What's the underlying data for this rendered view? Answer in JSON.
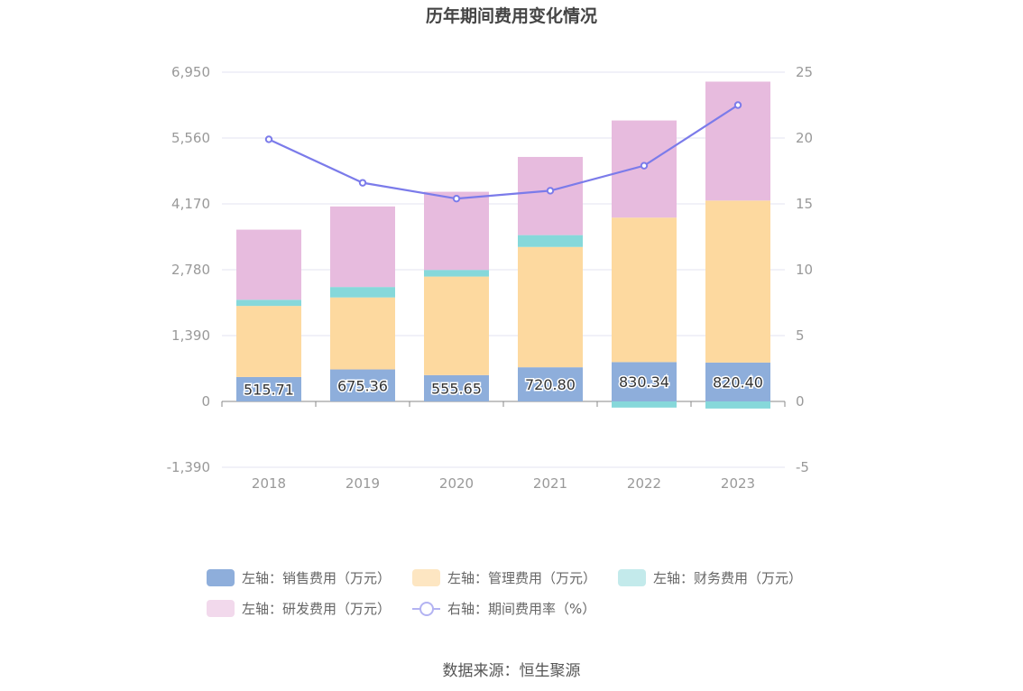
{
  "title": "历年期间费用变化情况",
  "source": "数据来源：恒生聚源",
  "chart_data": {
    "type": "bar",
    "stacked": true,
    "title": "历年期间费用变化情况",
    "categories": [
      "2018",
      "2019",
      "2020",
      "2021",
      "2022",
      "2023"
    ],
    "left_axis": {
      "ylim": [
        -1390,
        6950
      ],
      "ticks": [
        "-1,390",
        "0",
        "1,390",
        "2,780",
        "4,170",
        "5,560",
        "6,950"
      ]
    },
    "right_axis": {
      "ylim": [
        -5,
        25
      ],
      "ticks": [
        "-5",
        "0",
        "5",
        "10",
        "15",
        "20",
        "25"
      ]
    },
    "series": [
      {
        "name": "左轴：销售费用（万元）",
        "axis": "left",
        "color": "#8eaedb",
        "values": [
          515.71,
          675.36,
          555.65,
          720.8,
          830.34,
          820.4
        ],
        "labels": [
          "515.71",
          "675.36",
          "555.65",
          "720.80",
          "830.34",
          "820.40"
        ]
      },
      {
        "name": "左轴：管理费用（万元）",
        "axis": "left",
        "color": "#fdd99f",
        "values": [
          1500,
          1520,
          2080,
          2540,
          3050,
          3420
        ]
      },
      {
        "name": "左轴：财务费用（万元）",
        "axis": "left",
        "color": "#86d8da",
        "values": [
          130,
          220,
          140,
          250,
          -130,
          -150
        ]
      },
      {
        "name": "左轴：研发费用（万元）",
        "axis": "left",
        "color": "#e7bbde",
        "values": [
          1480,
          1700,
          1650,
          1650,
          2050,
          2510
        ]
      },
      {
        "name": "右轴：期间费用率（%）",
        "axis": "right",
        "type": "line",
        "color": "#7b7bea",
        "values": [
          19.9,
          16.6,
          15.4,
          16.0,
          17.9,
          22.5
        ]
      }
    ],
    "grid": true,
    "legend_position": "bottom"
  }
}
